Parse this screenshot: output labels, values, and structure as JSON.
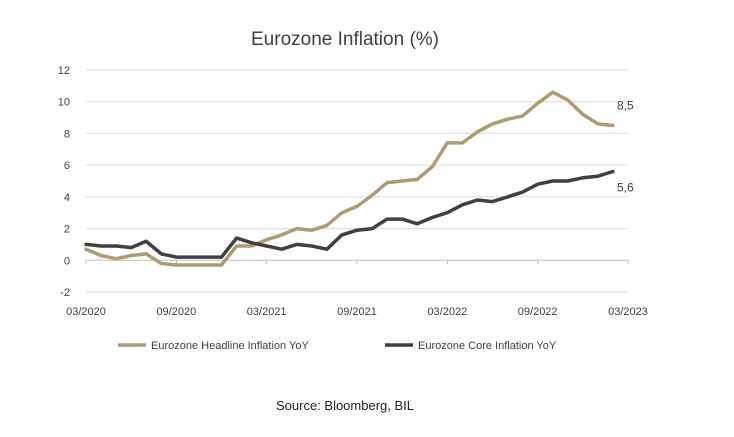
{
  "chart_data": {
    "type": "line",
    "title": "Eurozone Inflation (%)",
    "xlabel": "",
    "ylabel": "",
    "ylim": [
      -2,
      12
    ],
    "yticks": [
      -2,
      0,
      2,
      4,
      6,
      8,
      10,
      12
    ],
    "xtick_labels": [
      "03/2020",
      "09/2020",
      "03/2021",
      "09/2021",
      "03/2022",
      "09/2022",
      "03/2023"
    ],
    "grid": "horizontal",
    "legend_position": "bottom",
    "x": [
      "2020-03",
      "2020-04",
      "2020-05",
      "2020-06",
      "2020-07",
      "2020-08",
      "2020-09",
      "2020-10",
      "2020-11",
      "2020-12",
      "2021-01",
      "2021-02",
      "2021-03",
      "2021-04",
      "2021-05",
      "2021-06",
      "2021-07",
      "2021-08",
      "2021-09",
      "2021-10",
      "2021-11",
      "2021-12",
      "2022-01",
      "2022-02",
      "2022-03",
      "2022-04",
      "2022-05",
      "2022-06",
      "2022-07",
      "2022-08",
      "2022-09",
      "2022-10",
      "2022-11",
      "2022-12",
      "2023-01",
      "2023-02"
    ],
    "series": [
      {
        "name": "Eurozone Headline Inflation YoY",
        "color": "#b09a6e",
        "values": [
          0.7,
          0.3,
          0.1,
          0.3,
          0.4,
          -0.2,
          -0.3,
          -0.3,
          -0.3,
          -0.3,
          0.9,
          0.9,
          1.3,
          1.6,
          2.0,
          1.9,
          2.2,
          3.0,
          3.4,
          4.1,
          4.9,
          5.0,
          5.1,
          5.9,
          7.4,
          7.4,
          8.1,
          8.6,
          8.9,
          9.1,
          9.9,
          10.6,
          10.1,
          9.2,
          8.6,
          8.5
        ],
        "end_label": "8,5"
      },
      {
        "name": "Eurozone Core Inflation YoY",
        "color": "#404040",
        "values": [
          1.0,
          0.9,
          0.9,
          0.8,
          1.2,
          0.4,
          0.2,
          0.2,
          0.2,
          0.2,
          1.4,
          1.1,
          0.9,
          0.7,
          1.0,
          0.9,
          0.7,
          1.6,
          1.9,
          2.0,
          2.6,
          2.6,
          2.3,
          2.7,
          3.0,
          3.5,
          3.8,
          3.7,
          4.0,
          4.3,
          4.8,
          5.0,
          5.0,
          5.2,
          5.3,
          5.6
        ],
        "end_label": "5,6"
      }
    ]
  },
  "source_text": "Source: Bloomberg, BIL"
}
